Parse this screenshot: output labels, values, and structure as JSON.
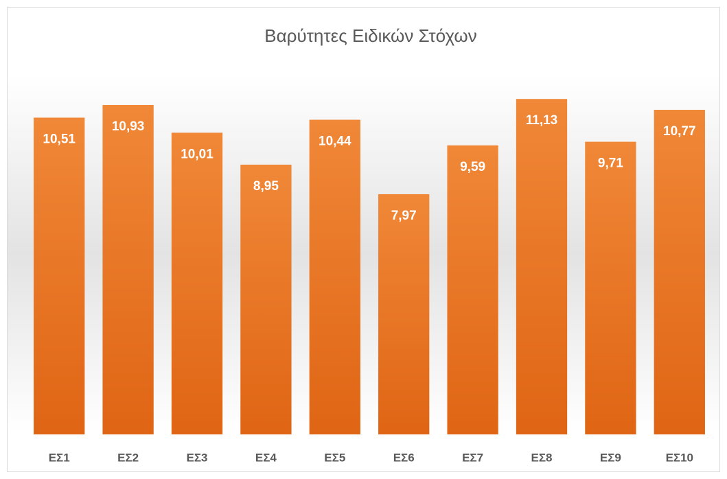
{
  "chart_data": {
    "type": "bar",
    "title": "Βαρύτητες Ειδικών Στόχων",
    "categories": [
      "ΕΣ1",
      "ΕΣ2",
      "ΕΣ3",
      "ΕΣ4",
      "ΕΣ5",
      "ΕΣ6",
      "ΕΣ7",
      "ΕΣ8",
      "ΕΣ9",
      "ΕΣ10"
    ],
    "values": [
      10.51,
      10.93,
      10.01,
      8.95,
      10.44,
      7.97,
      9.59,
      11.13,
      9.71,
      10.77
    ],
    "value_labels": [
      "10,51",
      "10,93",
      "10,01",
      "8,95",
      "10,44",
      "7,97",
      "9,59",
      "11,13",
      "9,71",
      "10,77"
    ],
    "color": "#e96f21",
    "ylim": [
      0,
      12
    ]
  }
}
